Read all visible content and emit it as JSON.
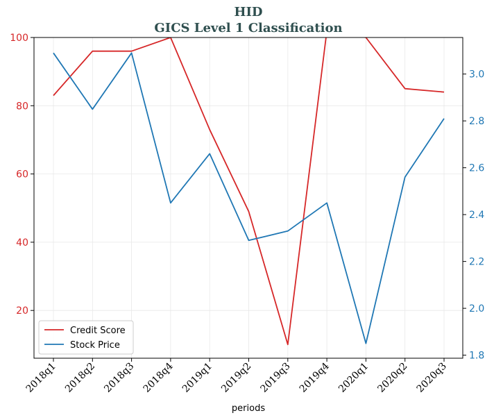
{
  "chart_data": {
    "type": "line",
    "title": "HID",
    "subtitle": "GICS Level 1 Classification",
    "xlabel": "periods",
    "ylabel_left": "",
    "ylabel_right": "",
    "categories": [
      "2018q1",
      "2018q2",
      "2018q3",
      "2018q4",
      "2019q1",
      "2019q2",
      "2019q3",
      "2019q4",
      "2020q1",
      "2020q2",
      "2020q3"
    ],
    "series": [
      {
        "name": "Credit Score",
        "axis": "left",
        "color": "#d62728",
        "values": [
          83,
          96,
          96,
          100,
          73,
          49,
          10,
          102,
          100,
          85,
          84
        ]
      },
      {
        "name": "Stock Price",
        "axis": "right",
        "color": "#1f77b4",
        "values": [
          3.09,
          2.85,
          3.09,
          2.45,
          2.66,
          2.29,
          2.33,
          2.45,
          1.85,
          2.56,
          2.81
        ]
      }
    ],
    "ylim_left": [
      6,
      100
    ],
    "yticks_left": [
      20,
      40,
      60,
      80,
      100
    ],
    "ylim_right": [
      1.787,
      3.156
    ],
    "yticks_right": [
      "1.8",
      "2.0",
      "2.2",
      "2.4",
      "2.6",
      "2.8",
      "3.0"
    ],
    "grid": true,
    "legend": "lower-left"
  }
}
